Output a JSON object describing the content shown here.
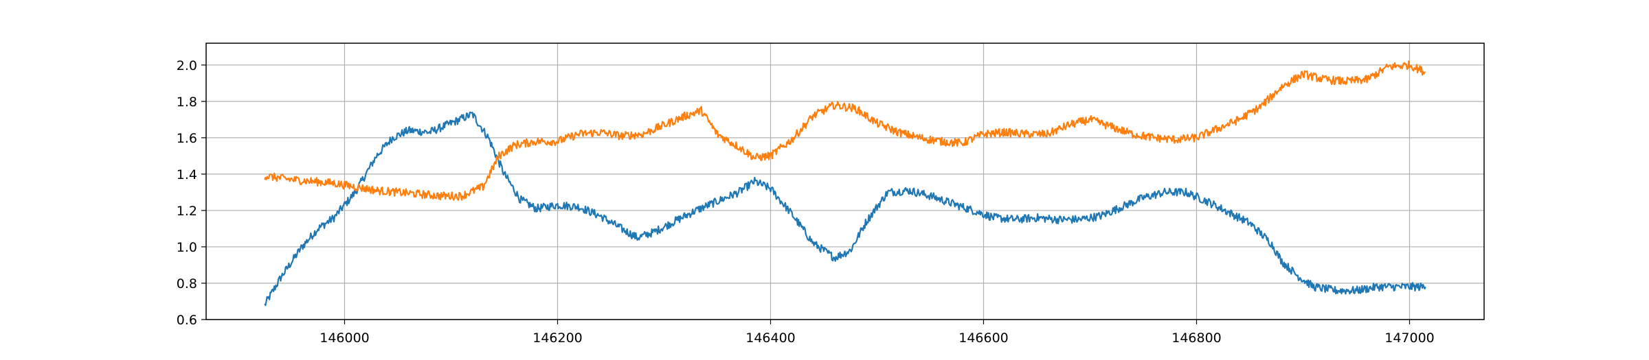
{
  "chart_data": {
    "type": "line",
    "title": "",
    "xlabel": "",
    "ylabel": "",
    "xlim": [
      145870,
      147070
    ],
    "ylim": [
      0.6,
      2.12
    ],
    "grid": true,
    "legend": "none",
    "x_ticks": [
      {
        "value": 146000,
        "label": "146000"
      },
      {
        "value": 146200,
        "label": "146200"
      },
      {
        "value": 146400,
        "label": "146400"
      },
      {
        "value": 146600,
        "label": "146600"
      },
      {
        "value": 146800,
        "label": "146800"
      },
      {
        "value": 147000,
        "label": "147000"
      }
    ],
    "y_ticks": [
      {
        "value": 0.6,
        "label": "0.6"
      },
      {
        "value": 0.8,
        "label": "0.8"
      },
      {
        "value": 1.0,
        "label": "1.0"
      },
      {
        "value": 1.2,
        "label": "1.2"
      },
      {
        "value": 1.4,
        "label": "1.4"
      },
      {
        "value": 1.6,
        "label": "1.6"
      },
      {
        "value": 1.8,
        "label": "1.8"
      },
      {
        "value": 2.0,
        "label": "2.0"
      }
    ],
    "series": [
      {
        "color": "#1f77b4",
        "x": [
          145925,
          145940,
          145960,
          145975,
          145990,
          146010,
          146030,
          146045,
          146060,
          146080,
          146100,
          146120,
          146135,
          146150,
          146165,
          146180,
          146200,
          146220,
          146240,
          146260,
          146275,
          146290,
          146310,
          146330,
          146350,
          146370,
          146385,
          146400,
          146420,
          146440,
          146460,
          146475,
          146490,
          146510,
          146530,
          146550,
          146570,
          146590,
          146610,
          146630,
          146650,
          146670,
          146690,
          146710,
          146730,
          146750,
          146770,
          146790,
          146810,
          146830,
          146850,
          146870,
          146880,
          146895,
          146910,
          146930,
          146950,
          146970,
          146990,
          147015
        ],
        "y": [
          0.68,
          0.83,
          1.0,
          1.1,
          1.16,
          1.3,
          1.5,
          1.6,
          1.64,
          1.63,
          1.68,
          1.73,
          1.6,
          1.4,
          1.26,
          1.21,
          1.23,
          1.22,
          1.17,
          1.1,
          1.05,
          1.08,
          1.14,
          1.2,
          1.25,
          1.3,
          1.36,
          1.32,
          1.18,
          1.02,
          0.94,
          0.98,
          1.14,
          1.3,
          1.31,
          1.28,
          1.24,
          1.2,
          1.16,
          1.15,
          1.16,
          1.15,
          1.15,
          1.17,
          1.22,
          1.27,
          1.3,
          1.3,
          1.25,
          1.19,
          1.13,
          1.02,
          0.92,
          0.84,
          0.78,
          0.76,
          0.76,
          0.78,
          0.78,
          0.78
        ]
      },
      {
        "color": "#ff7f0e",
        "x": [
          145925,
          145950,
          145970,
          145990,
          146010,
          146030,
          146050,
          146070,
          146090,
          146110,
          146130,
          146145,
          146160,
          146180,
          146200,
          146220,
          146240,
          146260,
          146280,
          146300,
          146320,
          146335,
          146350,
          146370,
          146385,
          146400,
          146420,
          146440,
          146460,
          146480,
          146500,
          146520,
          146540,
          146560,
          146580,
          146600,
          146620,
          146640,
          146660,
          146680,
          146700,
          146720,
          146740,
          146760,
          146780,
          146800,
          146820,
          146840,
          146860,
          146880,
          146900,
          146920,
          146940,
          146960,
          146980,
          147000,
          147015
        ],
        "y": [
          1.39,
          1.37,
          1.36,
          1.35,
          1.33,
          1.31,
          1.3,
          1.29,
          1.28,
          1.28,
          1.33,
          1.5,
          1.56,
          1.58,
          1.58,
          1.62,
          1.63,
          1.61,
          1.62,
          1.67,
          1.72,
          1.75,
          1.62,
          1.55,
          1.49,
          1.5,
          1.59,
          1.72,
          1.78,
          1.76,
          1.68,
          1.63,
          1.6,
          1.58,
          1.57,
          1.62,
          1.63,
          1.62,
          1.62,
          1.67,
          1.7,
          1.66,
          1.62,
          1.6,
          1.59,
          1.6,
          1.65,
          1.7,
          1.77,
          1.88,
          1.95,
          1.92,
          1.91,
          1.92,
          1.99,
          2.0,
          1.96
        ]
      }
    ]
  }
}
